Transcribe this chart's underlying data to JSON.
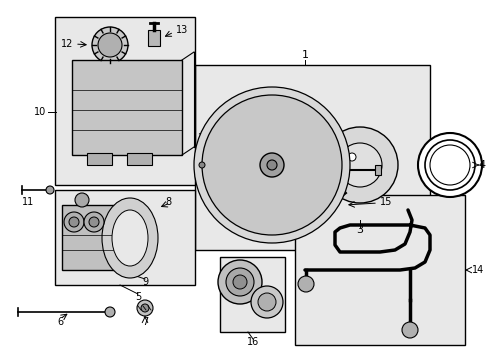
{
  "bg_color": "#ffffff",
  "lc": "#000000",
  "box_fill": "#e8e8e8",
  "figsize": [
    4.89,
    3.6
  ],
  "dpi": 100
}
